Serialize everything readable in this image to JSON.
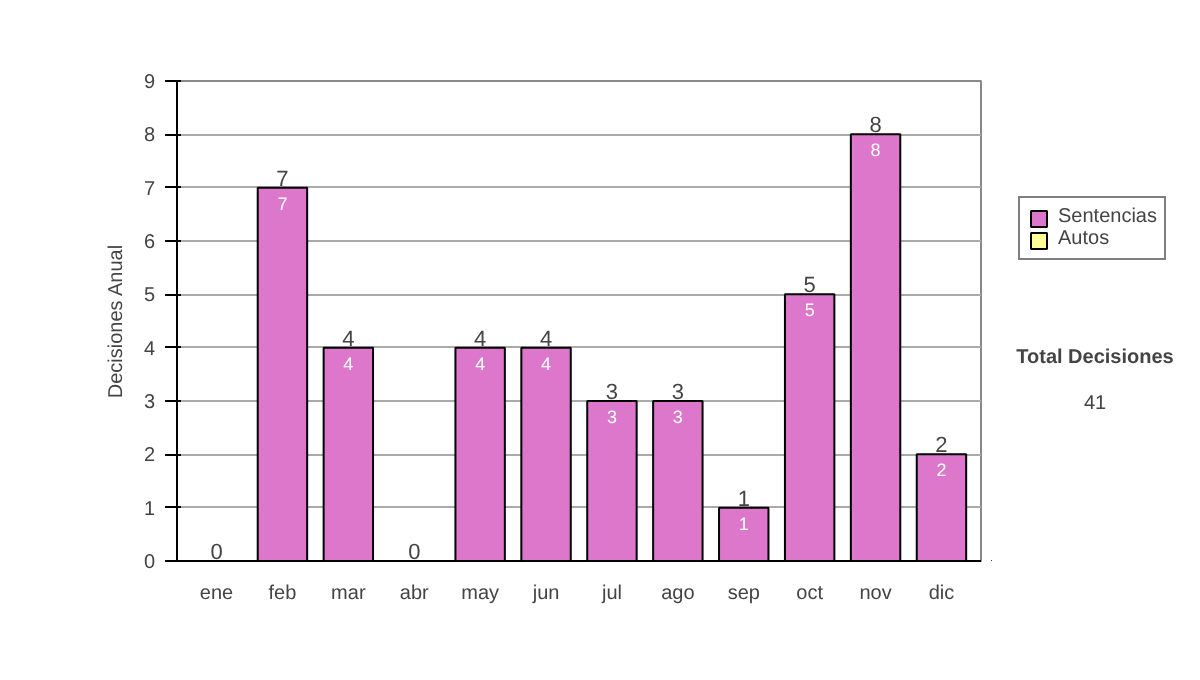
{
  "chart_data": {
    "type": "bar",
    "stacked": true,
    "ylabel": "Decisiones Anual",
    "categories": [
      "ene",
      "feb",
      "mar",
      "abr",
      "may",
      "jun",
      "jul",
      "ago",
      "sep",
      "oct",
      "nov",
      "dic"
    ],
    "series": [
      {
        "name": "Sentencias",
        "color": "#dd77cc",
        "values": [
          0,
          7,
          4,
          0,
          4,
          4,
          3,
          3,
          1,
          5,
          8,
          2
        ],
        "value_labels": [
          null,
          "7",
          "4",
          null,
          "4",
          "4",
          "3",
          "3",
          "1",
          "5",
          "8",
          "2"
        ]
      },
      {
        "name": "Autos",
        "color": "#ffff99",
        "values": [
          0,
          0,
          0,
          0,
          0,
          0,
          0,
          0,
          0,
          0,
          0,
          0
        ]
      }
    ],
    "totals": [
      "0",
      "7",
      "4",
      "0",
      "4",
      "4",
      "3",
      "3",
      "1",
      "5",
      "8",
      "2"
    ],
    "ylim": [
      0,
      9
    ],
    "yticks": [
      0,
      1,
      2,
      3,
      4,
      5,
      6,
      7,
      8,
      9
    ],
    "grid": "y",
    "legend": "right",
    "annotations": [
      "Total Decisiones",
      "41"
    ]
  }
}
